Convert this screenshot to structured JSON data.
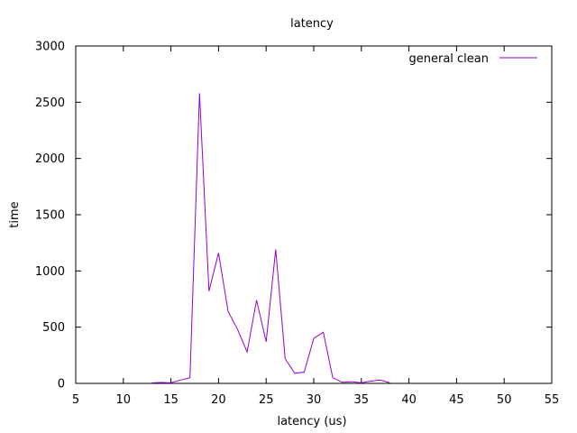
{
  "chart_data": {
    "type": "line",
    "title": "latency",
    "xlabel": "latency (us)",
    "ylabel": "time",
    "xlim": [
      5,
      55
    ],
    "ylim": [
      0,
      3000
    ],
    "xticks": [
      5,
      10,
      15,
      20,
      25,
      30,
      35,
      40,
      45,
      50,
      55
    ],
    "yticks": [
      0,
      500,
      1000,
      1500,
      2000,
      2500,
      3000
    ],
    "grid": false,
    "legend_position": "top-right",
    "series": [
      {
        "name": "general clean",
        "color": "#9400d3",
        "x": [
          13,
          14,
          15,
          16,
          17,
          18,
          19,
          20,
          21,
          22,
          23,
          24,
          25,
          26,
          27,
          28,
          29,
          30,
          31,
          32,
          33,
          34,
          35,
          36,
          37,
          38
        ],
        "y": [
          5,
          8,
          5,
          30,
          50,
          2580,
          820,
          1160,
          640,
          480,
          280,
          740,
          370,
          1190,
          220,
          90,
          100,
          400,
          455,
          50,
          10,
          15,
          5,
          20,
          30,
          5
        ]
      }
    ]
  }
}
